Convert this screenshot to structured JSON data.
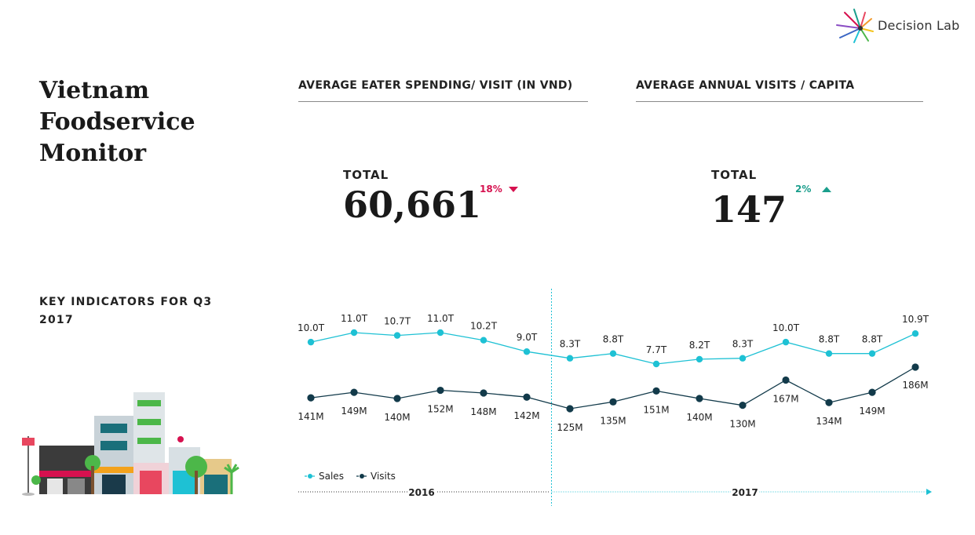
{
  "brand": {
    "name": "Decision Lab",
    "logo_icon": "starburst-icon"
  },
  "title": "Vietnam Foodservice Monitor",
  "spending": {
    "heading": "AVERAGE EATER SPENDING/ VISIT (IN VND)",
    "total_label": "TOTAL",
    "total_value": "60,661",
    "change": "18%",
    "change_direction": "down",
    "change_color": "#d6114f"
  },
  "visits": {
    "heading": "AVERAGE ANNUAL VISITS / CAPITA",
    "total_label": "TOTAL",
    "total_value": "147",
    "change": "2%",
    "change_direction": "up",
    "change_color": "#1a9e8c"
  },
  "key_indicators": {
    "heading": "KEY INDICATORS FOR Q3 2017"
  },
  "colors": {
    "sales": "#1ec1d4",
    "visits": "#123a4a",
    "divider": "#1ec1d4",
    "text": "#1a1a1a"
  },
  "chart_data": {
    "type": "line",
    "categories": [
      "",
      "",
      "",
      "",
      "",
      "",
      "",
      "",
      "",
      "",
      "",
      "",
      "",
      "",
      ""
    ],
    "series": [
      {
        "name": "Sales",
        "values": [
          10.0,
          11.0,
          10.7,
          11.0,
          10.2,
          9.0,
          8.3,
          8.8,
          7.7,
          8.2,
          8.3,
          10.0,
          8.8,
          8.8,
          10.9
        ],
        "labels": [
          "10.0T",
          "11.0T",
          "10.7T",
          "11.0T",
          "10.2T",
          "9.0T",
          "8.3T",
          "8.8T",
          "7.7T",
          "8.2T",
          "8.3T",
          "10.0T",
          "8.8T",
          "8.8T",
          "10.9T"
        ]
      },
      {
        "name": "Visits",
        "values": [
          141,
          149,
          140,
          152,
          148,
          142,
          125,
          135,
          151,
          140,
          130,
          167,
          134,
          149,
          186
        ],
        "labels": [
          "141M",
          "149M",
          "140M",
          "152M",
          "148M",
          "142M",
          "125M",
          "135M",
          "151M",
          "140M",
          "130M",
          "167M",
          "134M",
          "149M",
          "186M"
        ]
      }
    ],
    "periods": [
      {
        "label": "2016",
        "from_index": 0,
        "to_index": 5
      },
      {
        "label": "2017",
        "from_index": 6,
        "to_index": 14
      }
    ],
    "legend": [
      "Sales",
      "Visits"
    ],
    "legend_position": "bottom-left",
    "grid": false
  }
}
